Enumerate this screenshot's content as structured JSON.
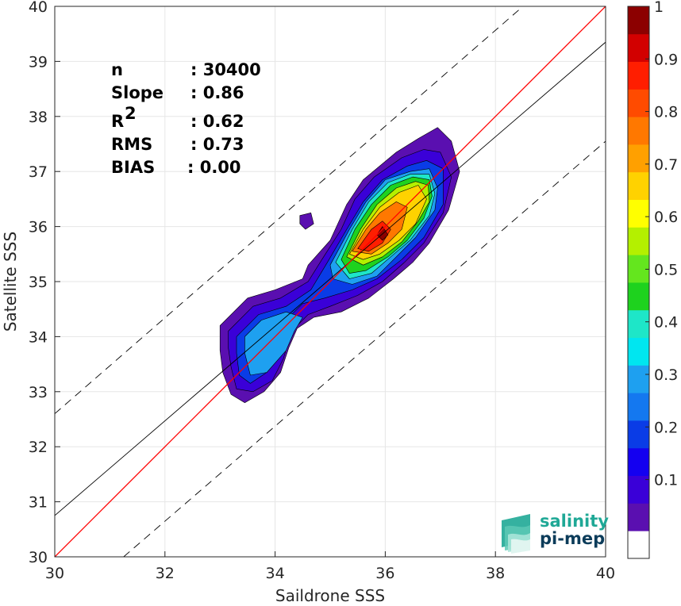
{
  "chart_data": {
    "type": "heatmap",
    "title": "",
    "xlabel": "Saildrone SSS",
    "ylabel": "Satellite SSS",
    "xlim": [
      30,
      40
    ],
    "ylim": [
      30,
      40
    ],
    "xticks": [
      "30",
      "32",
      "34",
      "36",
      "38",
      "40"
    ],
    "yticks": [
      "30",
      "31",
      "32",
      "33",
      "34",
      "35",
      "36",
      "37",
      "38",
      "39",
      "40"
    ],
    "grid": true,
    "stats": [
      {
        "label": "n",
        "value": ": 30400"
      },
      {
        "label": "Slope",
        "value": ": 0.86"
      },
      {
        "label": "R",
        "sup": "2",
        "value": ": 0.62"
      },
      {
        "label": "RMS",
        "value": ": 0.73"
      },
      {
        "label": "BIAS",
        "value": ": 0.00"
      }
    ],
    "lines": {
      "identity": {
        "color": "#ff0000",
        "from": [
          30,
          30
        ],
        "to": [
          40,
          40
        ]
      },
      "fit": {
        "color": "#000000",
        "from": [
          30,
          30.75
        ],
        "to": [
          40,
          39.35
        ]
      },
      "upper_bound": {
        "style": "dashed",
        "from": [
          30,
          32.6
        ],
        "to": [
          38.5,
          40
        ]
      },
      "lower_bound": {
        "style": "dashed",
        "from": [
          31.25,
          30
        ],
        "to": [
          40,
          37.55
        ]
      }
    },
    "density_levels": [
      {
        "level": 0.05,
        "color": "#5a0fb0",
        "polygons": [
          [
            [
              33.0,
              34.2
            ],
            [
              33.5,
              34.7
            ],
            [
              34.0,
              34.85
            ],
            [
              34.5,
              35.05
            ],
            [
              34.6,
              35.3
            ],
            [
              35.0,
              35.75
            ],
            [
              35.3,
              36.4
            ],
            [
              35.6,
              36.85
            ],
            [
              36.2,
              37.35
            ],
            [
              36.6,
              37.6
            ],
            [
              36.95,
              37.8
            ],
            [
              37.2,
              37.55
            ],
            [
              37.35,
              37.0
            ],
            [
              37.15,
              36.3
            ],
            [
              36.8,
              35.7
            ],
            [
              36.5,
              35.35
            ],
            [
              36.15,
              35.05
            ],
            [
              35.7,
              34.7
            ],
            [
              35.2,
              34.45
            ],
            [
              34.7,
              34.35
            ],
            [
              34.4,
              34.15
            ],
            [
              34.25,
              33.8
            ],
            [
              34.1,
              33.35
            ],
            [
              33.8,
              33.0
            ],
            [
              33.45,
              32.8
            ],
            [
              33.2,
              32.95
            ],
            [
              33.05,
              33.35
            ],
            [
              33.0,
              33.75
            ]
          ],
          [
            [
              34.45,
              36.2
            ],
            [
              34.65,
              36.25
            ],
            [
              34.7,
              36.05
            ],
            [
              34.55,
              35.95
            ],
            [
              34.45,
              36.05
            ]
          ]
        ]
      },
      {
        "level": 0.1,
        "color": "#3a00d8",
        "polygons": [
          [
            [
              33.15,
              34.1
            ],
            [
              33.6,
              34.55
            ],
            [
              34.1,
              34.7
            ],
            [
              34.6,
              35.0
            ],
            [
              34.85,
              35.4
            ],
            [
              35.2,
              35.95
            ],
            [
              35.45,
              36.5
            ],
            [
              35.8,
              36.9
            ],
            [
              36.3,
              37.25
            ],
            [
              36.7,
              37.4
            ],
            [
              37.0,
              37.35
            ],
            [
              37.2,
              36.9
            ],
            [
              37.05,
              36.25
            ],
            [
              36.7,
              35.7
            ],
            [
              36.35,
              35.35
            ],
            [
              35.95,
              35.0
            ],
            [
              35.5,
              34.75
            ],
            [
              35.0,
              34.55
            ],
            [
              34.6,
              34.4
            ],
            [
              34.3,
              34.1
            ],
            [
              34.15,
              33.6
            ],
            [
              33.95,
              33.2
            ],
            [
              33.6,
              33.0
            ],
            [
              33.3,
              33.05
            ],
            [
              33.2,
              33.45
            ],
            [
              33.15,
              33.8
            ]
          ]
        ]
      },
      {
        "level": 0.2,
        "color": "#0a3ce6",
        "polygons": [
          [
            [
              33.3,
              34.0
            ],
            [
              33.7,
              34.4
            ],
            [
              34.2,
              34.55
            ],
            [
              34.65,
              34.85
            ],
            [
              34.95,
              35.35
            ],
            [
              35.3,
              35.95
            ],
            [
              35.6,
              36.45
            ],
            [
              35.95,
              36.85
            ],
            [
              36.4,
              37.1
            ],
            [
              36.75,
              37.2
            ],
            [
              37.05,
              37.05
            ],
            [
              37.05,
              36.4
            ],
            [
              36.7,
              35.8
            ],
            [
              36.3,
              35.4
            ],
            [
              35.85,
              35.05
            ],
            [
              35.4,
              34.85
            ],
            [
              34.9,
              34.7
            ],
            [
              34.5,
              34.6
            ],
            [
              34.2,
              34.3
            ],
            [
              34.05,
              33.8
            ],
            [
              33.85,
              33.35
            ],
            [
              33.55,
              33.15
            ],
            [
              33.35,
              33.3
            ],
            [
              33.3,
              33.7
            ]
          ]
        ]
      },
      {
        "level": 0.3,
        "color": "#1ea0f0",
        "polygons": [
          [
            [
              35.0,
              35.3
            ],
            [
              35.35,
              35.95
            ],
            [
              35.65,
              36.45
            ],
            [
              36.0,
              36.85
            ],
            [
              36.45,
              37.0
            ],
            [
              36.8,
              37.05
            ],
            [
              36.95,
              36.7
            ],
            [
              36.9,
              36.3
            ],
            [
              36.55,
              35.8
            ],
            [
              36.2,
              35.45
            ],
            [
              35.85,
              35.1
            ],
            [
              35.4,
              34.95
            ],
            [
              35.05,
              35.05
            ]
          ],
          [
            [
              33.45,
              34.0
            ],
            [
              33.75,
              34.3
            ],
            [
              34.2,
              34.45
            ],
            [
              34.5,
              34.35
            ],
            [
              34.35,
              34.1
            ],
            [
              34.2,
              33.75
            ],
            [
              33.85,
              33.35
            ],
            [
              33.55,
              33.3
            ],
            [
              33.45,
              33.7
            ]
          ]
        ]
      },
      {
        "level": 0.4,
        "color": "#1ee6c8",
        "polygons": [
          [
            [
              35.1,
              35.35
            ],
            [
              35.4,
              35.95
            ],
            [
              35.7,
              36.45
            ],
            [
              36.05,
              36.8
            ],
            [
              36.45,
              36.95
            ],
            [
              36.8,
              36.95
            ],
            [
              36.9,
              36.6
            ],
            [
              36.8,
              36.2
            ],
            [
              36.45,
              35.75
            ],
            [
              36.1,
              35.45
            ],
            [
              35.75,
              35.15
            ],
            [
              35.35,
              35.05
            ]
          ]
        ]
      },
      {
        "level": 0.5,
        "color": "#1ed21e",
        "polygons": [
          [
            [
              35.2,
              35.4
            ],
            [
              35.45,
              35.95
            ],
            [
              35.75,
              36.4
            ],
            [
              36.1,
              36.75
            ],
            [
              36.5,
              36.9
            ],
            [
              36.8,
              36.85
            ],
            [
              36.85,
              36.55
            ],
            [
              36.7,
              36.15
            ],
            [
              36.4,
              35.75
            ],
            [
              36.05,
              35.45
            ],
            [
              35.65,
              35.2
            ],
            [
              35.35,
              35.15
            ]
          ]
        ]
      },
      {
        "level": 0.6,
        "color": "#b4f000",
        "polygons": [
          [
            [
              35.3,
              35.45
            ],
            [
              35.55,
              35.95
            ],
            [
              35.85,
              36.4
            ],
            [
              36.2,
              36.7
            ],
            [
              36.55,
              36.82
            ],
            [
              36.78,
              36.75
            ],
            [
              36.8,
              36.45
            ],
            [
              36.6,
              36.1
            ],
            [
              36.3,
              35.72
            ],
            [
              35.95,
              35.45
            ],
            [
              35.6,
              35.3
            ]
          ]
        ]
      },
      {
        "level": 0.7,
        "color": "#ffd200",
        "polygons": [
          [
            [
              35.35,
              35.5
            ],
            [
              35.6,
              35.95
            ],
            [
              35.9,
              36.35
            ],
            [
              36.25,
              36.62
            ],
            [
              36.6,
              36.75
            ],
            [
              36.75,
              36.5
            ],
            [
              36.55,
              36.05
            ],
            [
              36.25,
              35.75
            ],
            [
              35.9,
              35.5
            ],
            [
              35.6,
              35.4
            ]
          ]
        ]
      },
      {
        "level": 0.8,
        "color": "#ff7800",
        "polygons": [
          [
            [
              35.4,
              35.55
            ],
            [
              35.65,
              35.95
            ],
            [
              35.9,
              36.25
            ],
            [
              36.2,
              36.45
            ],
            [
              36.4,
              36.35
            ],
            [
              36.3,
              35.95
            ],
            [
              36.05,
              35.7
            ],
            [
              35.75,
              35.5
            ]
          ]
        ]
      },
      {
        "level": 0.9,
        "color": "#ff1e00",
        "polygons": [
          [
            [
              35.5,
              35.6
            ],
            [
              35.75,
              35.95
            ],
            [
              35.95,
              36.1
            ],
            [
              36.1,
              35.95
            ],
            [
              35.95,
              35.7
            ],
            [
              35.7,
              35.55
            ]
          ]
        ]
      },
      {
        "level": 1.0,
        "color": "#8c0000",
        "polygons": [
          [
            [
              35.85,
              35.85
            ],
            [
              35.95,
              36.0
            ],
            [
              36.05,
              35.85
            ],
            [
              35.95,
              35.75
            ]
          ]
        ]
      }
    ],
    "colorbar": {
      "ticks": [
        "0.1",
        "0.2",
        "0.3",
        "0.4",
        "0.5",
        "0.6",
        "0.7",
        "0.8",
        "0.9",
        "1"
      ],
      "colors": [
        "#ffffff",
        "#5a0fb0",
        "#3a00d8",
        "#1400f0",
        "#0a3ce6",
        "#1478f0",
        "#1ea0f0",
        "#00e6f0",
        "#1ee6c8",
        "#1ed21e",
        "#64e61e",
        "#b4f000",
        "#ffff00",
        "#ffd200",
        "#ffa000",
        "#ff7800",
        "#ff4b00",
        "#ff1e00",
        "#d20000",
        "#8c0000"
      ]
    },
    "logo": {
      "line1": "salinity",
      "line2": "pi-mep",
      "color1": "#1fa896",
      "color2": "#0c3c5a"
    }
  }
}
